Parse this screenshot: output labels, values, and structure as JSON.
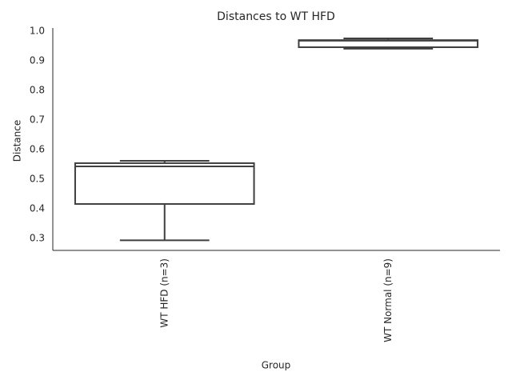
{
  "chart_data": {
    "type": "box",
    "title": "Distances to WT HFD",
    "x_label": "Group",
    "y_label": "Distance",
    "categories": [
      "WT HFD (n=3)",
      "WT Normal (n=9)"
    ],
    "boxes": [
      {
        "min": 0.293,
        "q1": 0.416,
        "median": 0.543,
        "q3": 0.554,
        "max": 0.562
      },
      {
        "min": 0.941,
        "q1": 0.946,
        "median": 0.968,
        "q3": 0.97,
        "max": 0.976
      }
    ],
    "color": "#3f3f3f",
    "ylim": [
      0.259,
      1.011
    ],
    "yticks": [
      0.3,
      0.4,
      0.5,
      0.6,
      0.7,
      0.8,
      0.9,
      {
        "value": 1,
        "label": "1.0"
      }
    ],
    "grid": false
  }
}
